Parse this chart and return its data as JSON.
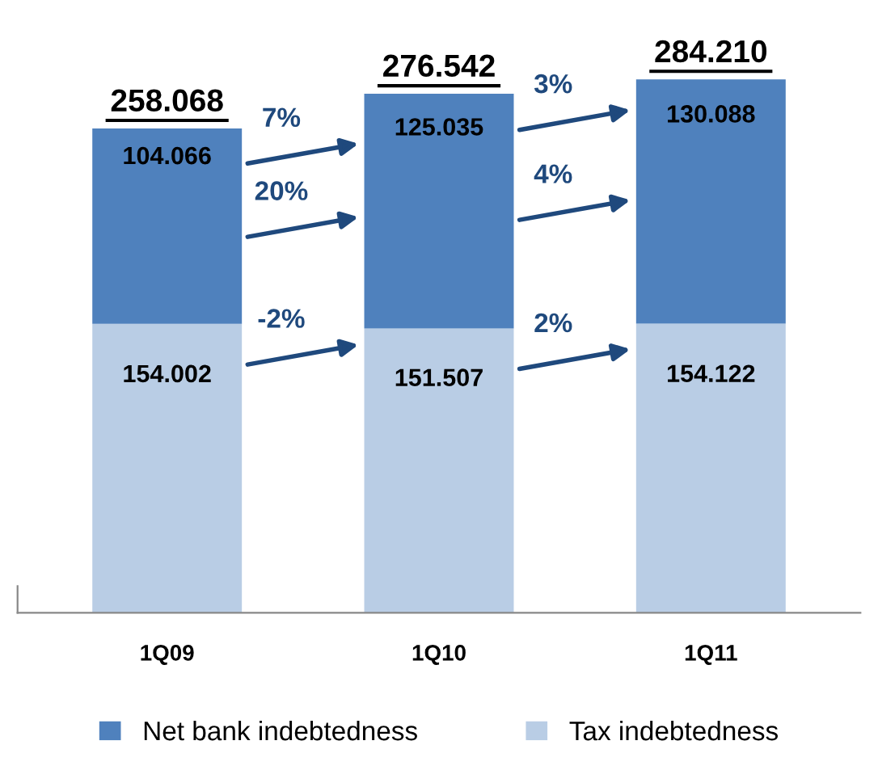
{
  "chart_data": {
    "type": "bar",
    "stacked": true,
    "categories": [
      "1Q09",
      "1Q10",
      "1Q11"
    ],
    "series": [
      {
        "name": "Tax indebtedness",
        "color": "#b9cde5",
        "values": [
          154002,
          151507,
          154122
        ],
        "value_labels": [
          "154.002",
          "151.507",
          "154.122"
        ]
      },
      {
        "name": "Net bank indebtedness",
        "color": "#4f81bd",
        "values": [
          104066,
          125035,
          130088
        ],
        "value_labels": [
          "104.066",
          "125.035",
          "130.088"
        ]
      }
    ],
    "totals": [
      "258.068",
      "276.542",
      "284.210"
    ],
    "annotations": [
      "7%",
      "20%",
      "-2%",
      "3%",
      "4%",
      "2%"
    ],
    "legend": "bottom",
    "grid": false
  }
}
